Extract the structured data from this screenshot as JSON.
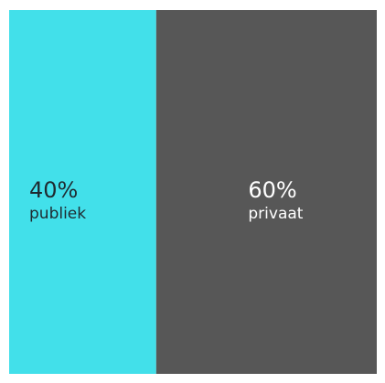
{
  "chart_data": {
    "type": "bar",
    "subtype": "100% stacked horizontal share",
    "categories": [
      "publiek",
      "privaat"
    ],
    "values": [
      40,
      60
    ],
    "value_labels": [
      "40%",
      "60%"
    ],
    "colors": [
      "#42e0ea",
      "#575757"
    ],
    "label_colors": [
      "#1f2a30",
      "#ffffff"
    ],
    "grid": false,
    "legend": "none"
  }
}
